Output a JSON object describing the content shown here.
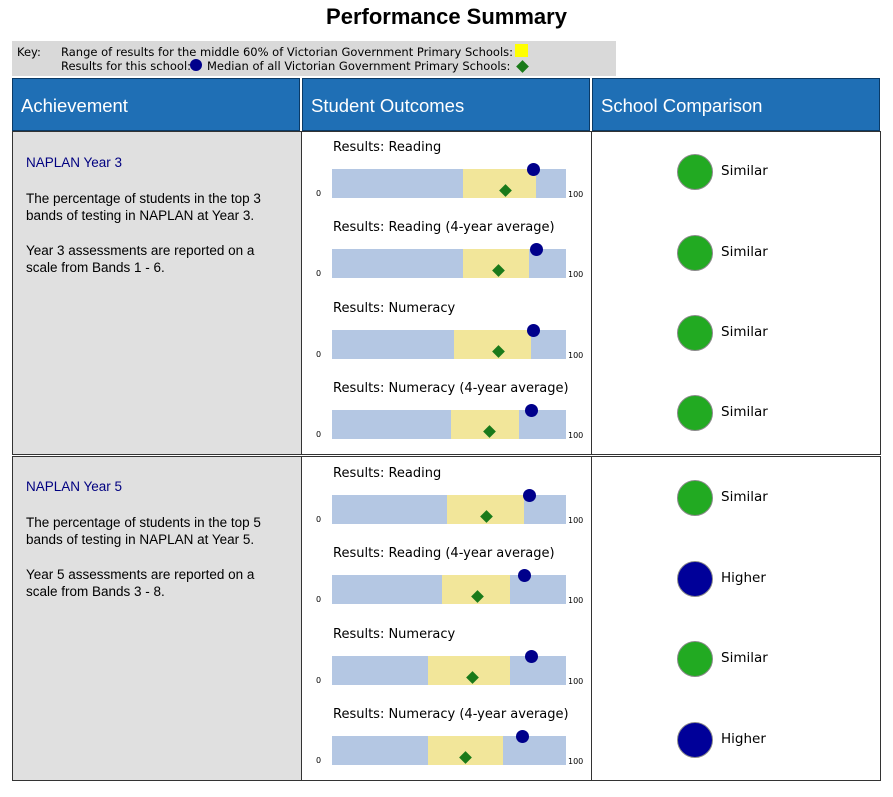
{
  "title": "Performance Summary",
  "key": {
    "label": "Key:",
    "range_text": "Range of results for the middle 60% of Victorian Government Primary Schools:",
    "school_text": "Results for this school:",
    "median_text": "Median of all Victorian Government Primary Schools:"
  },
  "headers": {
    "achievement": "Achievement",
    "outcomes": "Student Outcomes",
    "comparison": "School Comparison"
  },
  "colors": {
    "header_blue": "#1f6fb5",
    "bar_blue": "#b4c7e3",
    "range_yellow": "#f2e69a",
    "school_dot": "#00008b",
    "median_diamond": "#1a7a1a",
    "similar_green": "#22aa22",
    "higher_navy": "#000099"
  },
  "rows": [
    {
      "title": "NAPLAN Year 3",
      "desc1": "The percentage of students in the top 3 bands of testing in NAPLAN at Year 3.",
      "desc2": "Year 3 assessments are reported on a scale from Bands 1 - 6.",
      "charts": [
        {
          "title": "Results: Reading",
          "axis_min": "0",
          "axis_max": "100",
          "range": [
            56,
            87
          ],
          "school": 86,
          "median": 74
        },
        {
          "title": "Results: Reading (4-year average)",
          "axis_min": "0",
          "axis_max": "100",
          "range": [
            56,
            84
          ],
          "school": 87,
          "median": 71
        },
        {
          "title": "Results: Numeracy",
          "axis_min": "0",
          "axis_max": "100",
          "range": [
            52,
            85
          ],
          "school": 86,
          "median": 71
        },
        {
          "title": "Results: Numeracy (4-year average)",
          "axis_min": "0",
          "axis_max": "100",
          "range": [
            51,
            80
          ],
          "school": 85,
          "median": 67
        }
      ],
      "comparisons": [
        {
          "label": "Similar",
          "color": "#22aa22"
        },
        {
          "label": "Similar",
          "color": "#22aa22"
        },
        {
          "label": "Similar",
          "color": "#22aa22"
        },
        {
          "label": "Similar",
          "color": "#22aa22"
        }
      ]
    },
    {
      "title": "NAPLAN Year 5",
      "desc1": "The percentage of students in the top 5 bands of testing in NAPLAN at Year 5.",
      "desc2": "Year 5 assessments are reported on a scale from Bands 3 - 8.",
      "charts": [
        {
          "title": "Results: Reading",
          "axis_min": "0",
          "axis_max": "100",
          "range": [
            49,
            82
          ],
          "school": 84,
          "median": 66
        },
        {
          "title": "Results: Reading (4-year average)",
          "axis_min": "0",
          "axis_max": "100",
          "range": [
            47,
            76
          ],
          "school": 82,
          "median": 62
        },
        {
          "title": "Results: Numeracy",
          "axis_min": "0",
          "axis_max": "100",
          "range": [
            41,
            76
          ],
          "school": 85,
          "median": 60
        },
        {
          "title": "Results: Numeracy (4-year average)",
          "axis_min": "0",
          "axis_max": "100",
          "range": [
            41,
            73
          ],
          "school": 81,
          "median": 57
        }
      ],
      "comparisons": [
        {
          "label": "Similar",
          "color": "#22aa22"
        },
        {
          "label": "Higher",
          "color": "#000099"
        },
        {
          "label": "Similar",
          "color": "#22aa22"
        },
        {
          "label": "Higher",
          "color": "#000099"
        }
      ]
    }
  ]
}
